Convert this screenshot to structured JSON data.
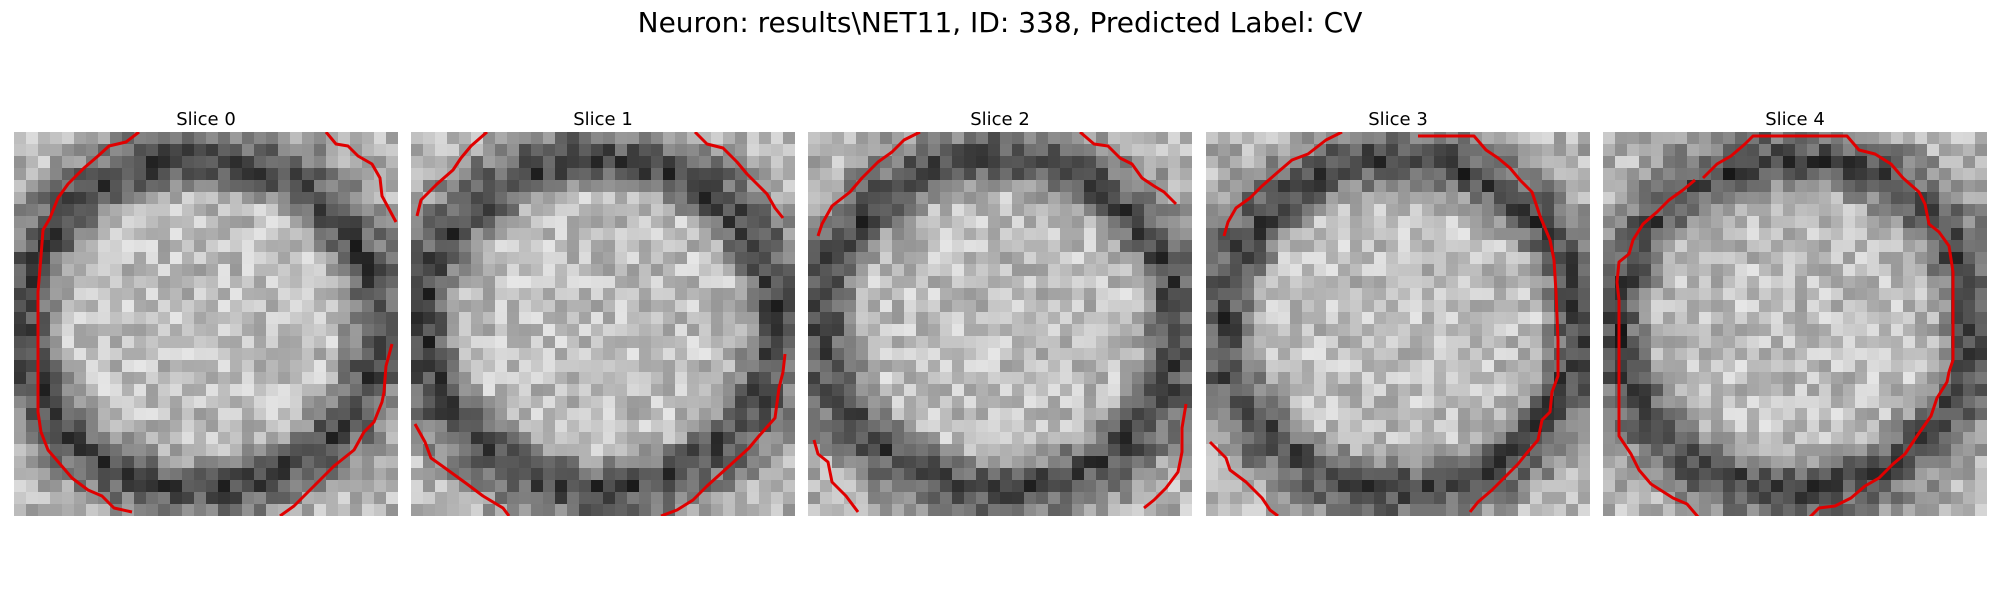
{
  "figure": {
    "title": "Neuron: results\\NET11, ID: 338, Predicted Label: CV",
    "contour_color": "#e00000"
  },
  "slices": [
    {
      "title": "Slice 0"
    },
    {
      "title": "Slice 1"
    },
    {
      "title": "Slice 2"
    },
    {
      "title": "Slice 3"
    },
    {
      "title": "Slice 4"
    }
  ]
}
